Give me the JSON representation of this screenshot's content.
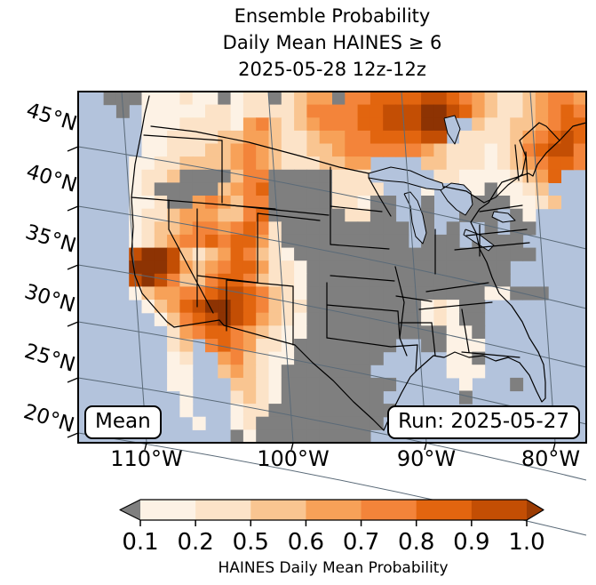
{
  "title": {
    "line1": "Ensemble Probability",
    "line2": "Daily Mean HAINES ≥ 6",
    "line3": "2025-05-28 12z-12z"
  },
  "map": {
    "overlay_boxes": {
      "stat_label": "Mean",
      "run_label": "Run: 2025-05-27"
    },
    "y_axis": {
      "ticks": [
        "45°N",
        "40°N",
        "35°N",
        "30°N",
        "25°N",
        "20°N"
      ]
    },
    "x_axis": {
      "ticks": [
        "110°W",
        "100°W",
        "90°W",
        "80°W"
      ]
    },
    "colors": {
      "ocean": "#b3c3dc",
      "masked_gray": "#7f7f7f",
      "graticule": "#5a6a78",
      "state_border": "#000000",
      "frame": "#000000"
    }
  },
  "chart_data": {
    "type": "heatmap",
    "title": "Ensemble Probability Daily Mean HAINES ≥ 6 2025-05-28 12z-12z",
    "statistic": "Mean",
    "run": "2025-05-27",
    "valid_period": "2025-05-28 12z-12z",
    "lat_ticks": [
      45,
      40,
      35,
      30,
      25,
      20
    ],
    "lon_ticks": [
      -110,
      -100,
      -90,
      -80
    ],
    "colorbar": {
      "label": "HAINES Daily Mean Probability",
      "tick_labels": [
        "0.1",
        "0.2",
        "0.5",
        "0.6",
        "0.7",
        "0.8",
        "0.9",
        "1.0"
      ],
      "boundaries": [
        0.1,
        0.2,
        0.5,
        0.6,
        0.7,
        0.8,
        0.9,
        1.0
      ],
      "segment_colors": [
        "#fdf2e5",
        "#fce3c8",
        "#f9c591",
        "#f7a158",
        "#f3843a",
        "#e2650f",
        "#c34e04"
      ],
      "under_color": "#7f7f7f",
      "over_color": "#9c3c03"
    },
    "class_colors": {
      "0": "#fdf2e5",
      "1": "#fce3c8",
      "2": "#f9c591",
      "3": "#f7a158",
      "4": "#f3843a",
      "5": "#e2650f",
      "6": "#c34e04",
      "7": "#8d3303",
      "g": "#7f7f7f"
    },
    "class_levels": {
      ".": "water / outside field",
      "g": "< 0.1",
      "0": "0.1-0.2",
      "1": "0.2-0.5",
      "2": "0.5-0.6",
      "3": "0.6-0.7",
      "4": "0.7-0.8",
      "5": "0.8-0.9",
      "6": "0.9-1.0",
      "7": "1.0 (max)"
    },
    "grid_cols": 40,
    "grid_rows": 27,
    "grid": [
      "..ggg000100g011g1233g4455556654321123443",
      "...g.00000110111124444556667765321123454",
      ".....000111103421234445566677..211223455",
      ".....001111223321123344555566.1111234565",
      ".....001112234321122344444432111012456 64",
      "....0011222234321112233....2211101234554",
      "....0112gggg244ggggg111.....1100001235..",
      "....01ggggg2345ggggg1111...0..00g0012...",
      "....001gg343244ggggg110gg..g..gggg0012..",
      "....01123332245gggggg11gg..g..ggg.g0....",
      "....012234434541gggggggggg.g.g..g.gg....",
      "....012344545531gggggggggg.ggg.gggg.....",
      "....6776212354210ggggggggggggggggggg....",
      "....77763234553110gggggggggggggggg......",
      "....67642245542110gggggggggggggggg......",
      "....02334456654210gggggggggggggg00ggg...",
      ".....0235677654211ggggggggg010gg........",
      "......024567653210ggggggggg010gg........",
      ".......13455432100ggggggggggg00g........",
      ".......12.4543110gggggggg..gg000........",
      ".......01..342100ggggggg.....00g........",
      ".......00..23210ggggggg......000........",
      ".......00...2210ggggggggg.....0...g.....",
      "........0...1210gggggggg......g.........",
      "........0...011gggggggggg...............",
      ".........0..01gggggggggg................",
      "............g0ggggggggg................."
    ]
  }
}
